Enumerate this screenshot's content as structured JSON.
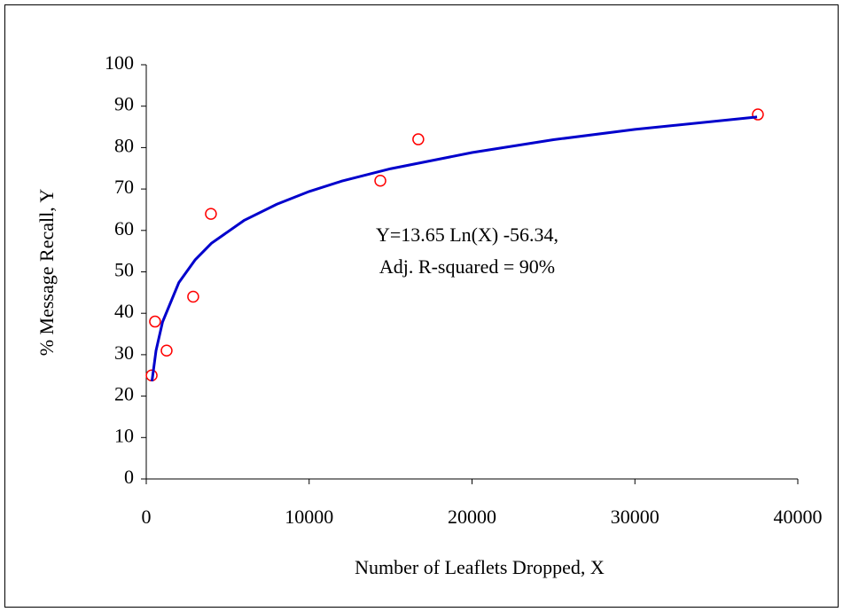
{
  "chart_data": {
    "type": "scatter",
    "xlabel": "Number of Leaflets Dropped, X",
    "ylabel": "% Message Recall, Y",
    "annotations": [
      "Y=13.65 Ln(X) -56.34,",
      "Adj. R-squared = 90%"
    ],
    "xlim": [
      0,
      40000
    ],
    "xticks": [
      0,
      10000,
      20000,
      30000,
      40000
    ],
    "ylim": [
      0,
      100
    ],
    "yticks": [
      0,
      10,
      20,
      30,
      40,
      50,
      60,
      70,
      80,
      90,
      100
    ],
    "grid": false,
    "series": [
      {
        "kind": "markers",
        "color": "#ff0000",
        "x": [
          330,
          540,
          1250,
          2880,
          3970,
          14370,
          16700,
          37550
        ],
        "values": [
          25,
          38,
          31,
          44,
          64,
          72,
          82,
          88
        ]
      },
      {
        "kind": "line",
        "color": "#0000cc",
        "x": [
          350,
          600,
          1000,
          2000,
          3000,
          4000,
          6000,
          8000,
          10000,
          12000,
          15000,
          20000,
          25000,
          30000,
          37500
        ],
        "values": [
          23.6,
          31.0,
          37.9,
          47.4,
          52.9,
          56.9,
          62.4,
          66.3,
          69.4,
          71.9,
          74.9,
          78.8,
          81.9,
          84.4,
          87.4
        ]
      }
    ]
  }
}
